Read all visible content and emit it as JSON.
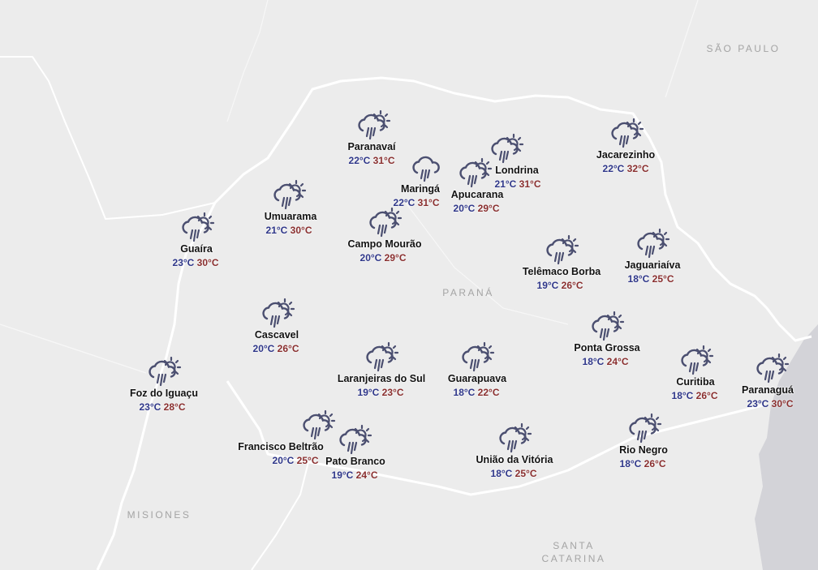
{
  "colors": {
    "min_temp": "#2f378a",
    "max_temp": "#8a2f2f",
    "icon": "#4b4f70",
    "land": "#ececec",
    "sea": "#d2d2d6",
    "border": "#ffffff"
  },
  "regions": [
    {
      "label": "SÃO PAULO"
    },
    {
      "label": "PARANÁ"
    },
    {
      "label": "MISIONES"
    },
    {
      "label": "SANTA CATARINA"
    }
  ],
  "cities": [
    {
      "name": "Paranavaí",
      "min": "22°C",
      "max": "31°C",
      "icon": "rain-sun-icon"
    },
    {
      "name": "Maringá",
      "min": "22°C",
      "max": "31°C",
      "icon": "rain-icon"
    },
    {
      "name": "Londrina",
      "min": "21°C",
      "max": "31°C",
      "icon": "rain-sun-icon"
    },
    {
      "name": "Apucarana",
      "min": "20°C",
      "max": "29°C",
      "icon": "rain-sun-icon"
    },
    {
      "name": "Jacarezinho",
      "min": "22°C",
      "max": "32°C",
      "icon": "rain-sun-icon"
    },
    {
      "name": "Umuarama",
      "min": "21°C",
      "max": "30°C",
      "icon": "rain-sun-icon"
    },
    {
      "name": "Guaíra",
      "min": "23°C",
      "max": "30°C",
      "icon": "rain-sun-icon"
    },
    {
      "name": "Campo Mourão",
      "min": "20°C",
      "max": "29°C",
      "icon": "rain-sun-icon"
    },
    {
      "name": "Telêmaco Borba",
      "min": "19°C",
      "max": "26°C",
      "icon": "rain-sun-icon"
    },
    {
      "name": "Jaguariaíva",
      "min": "18°C",
      "max": "25°C",
      "icon": "rain-sun-icon"
    },
    {
      "name": "Cascavel",
      "min": "20°C",
      "max": "26°C",
      "icon": "rain-sun-icon"
    },
    {
      "name": "Ponta Grossa",
      "min": "18°C",
      "max": "24°C",
      "icon": "rain-sun-icon"
    },
    {
      "name": "Laranjeiras do Sul",
      "min": "19°C",
      "max": "23°C",
      "icon": "rain-sun-icon"
    },
    {
      "name": "Guarapuava",
      "min": "18°C",
      "max": "22°C",
      "icon": "rain-sun-icon"
    },
    {
      "name": "Curitiba",
      "min": "18°C",
      "max": "26°C",
      "icon": "rain-sun-icon"
    },
    {
      "name": "Paranaguá",
      "min": "23°C",
      "max": "30°C",
      "icon": "rain-sun-icon"
    },
    {
      "name": "Foz do Iguaçu",
      "min": "23°C",
      "max": "28°C",
      "icon": "rain-sun-icon"
    },
    {
      "name": "Francisco Beltrão",
      "min": "20°C",
      "max": "25°C",
      "icon": "rain-sun-icon"
    },
    {
      "name": "Pato Branco",
      "min": "19°C",
      "max": "24°C",
      "icon": "rain-sun-icon"
    },
    {
      "name": "União da Vitória",
      "min": "18°C",
      "max": "25°C",
      "icon": "rain-sun-icon"
    },
    {
      "name": "Rio Negro",
      "min": "18°C",
      "max": "26°C",
      "icon": "rain-sun-icon"
    }
  ]
}
